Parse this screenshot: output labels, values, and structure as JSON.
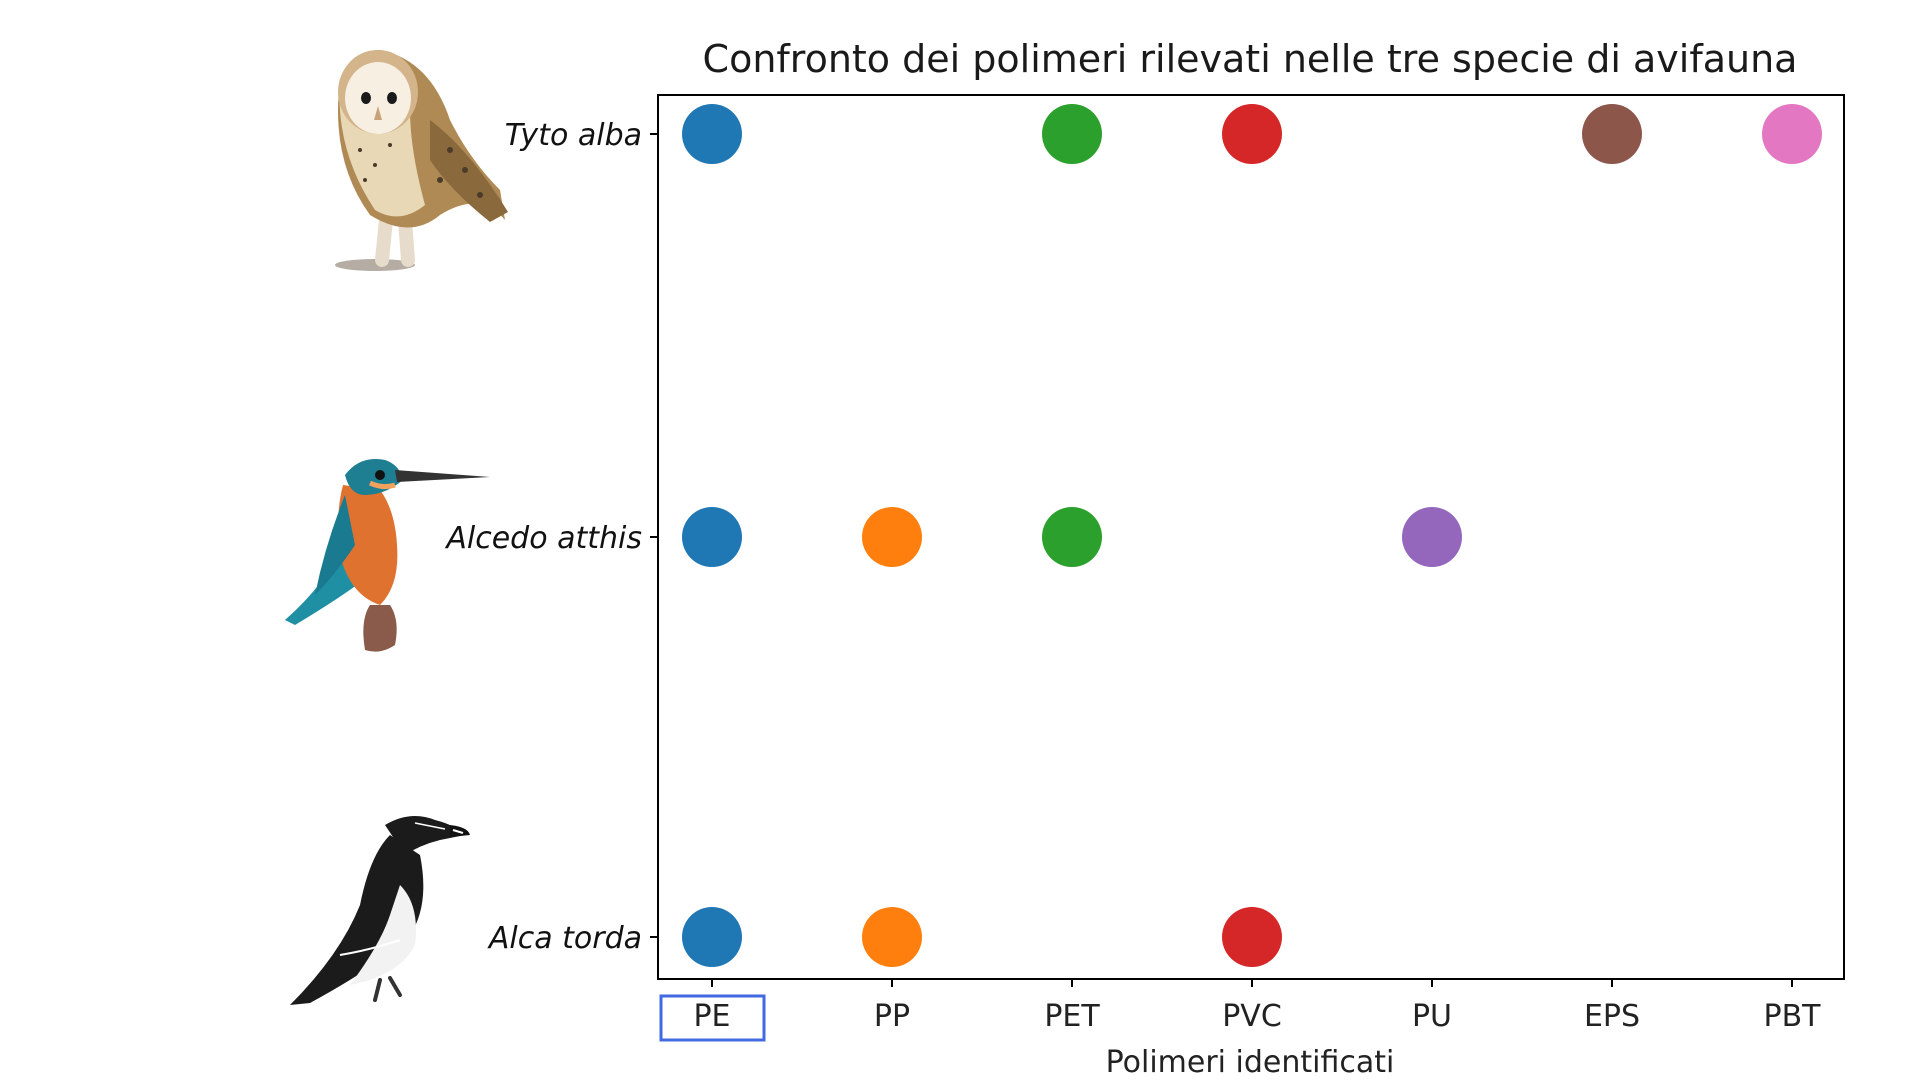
{
  "chart_data": {
    "type": "scatter",
    "title": "Confronto dei polimeri rilevati nelle tre specie di avifauna",
    "xlabel": "Polimeri identificati",
    "ylabel": "",
    "categories": [
      "PE",
      "PP",
      "PET",
      "PVC",
      "PU",
      "EPS",
      "PBT"
    ],
    "species": [
      {
        "name": "Tyto alba",
        "polymers": [
          "PE",
          "PET",
          "PVC",
          "EPS",
          "PBT"
        ],
        "icon": "barn-owl-icon"
      },
      {
        "name": "Alcedo atthis",
        "polymers": [
          "PE",
          "PP",
          "PET",
          "PU"
        ],
        "icon": "kingfisher-icon"
      },
      {
        "name": "Alca torda",
        "polymers": [
          "PE",
          "PP",
          "PVC"
        ],
        "icon": "razorbill-icon"
      }
    ],
    "colors": {
      "PE": "#1f77b4",
      "PP": "#ff7f0e",
      "PET": "#2ca02c",
      "PVC": "#d62728",
      "PU": "#9467bd",
      "EPS": "#8c564b",
      "PBT": "#e377c2"
    },
    "grid": false,
    "highlighted_category": "PE",
    "highlight_color": "#4169e1"
  }
}
